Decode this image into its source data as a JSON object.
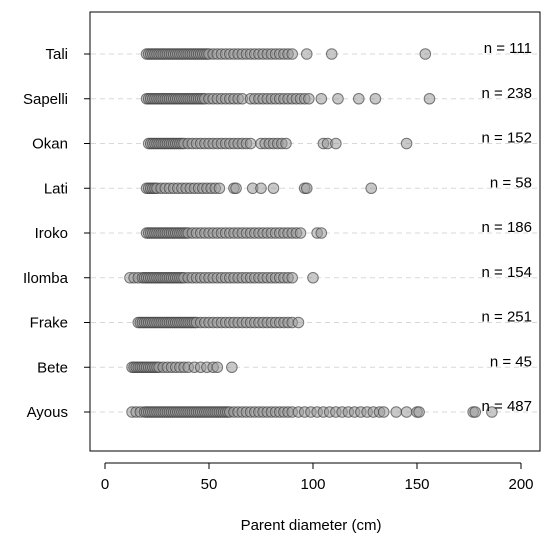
{
  "chart_data": {
    "type": "scatter",
    "xlabel": "Parent diameter (cm)",
    "ylabel": "",
    "title": "",
    "xlim": [
      -7,
      205
    ],
    "x_ticks": [
      0,
      50,
      100,
      150,
      200
    ],
    "grid": "horizontal dashed",
    "colors": {
      "point_fill": "#9a9a9a",
      "point_stroke": "#3a3a3a",
      "grid": "#d8d8d8"
    },
    "categories": [
      "Ayous",
      "Bete",
      "Frake",
      "Ilomba",
      "Iroko",
      "Lati",
      "Okan",
      "Sapelli",
      "Tali"
    ],
    "series": [
      {
        "values": [
          13,
          15,
          17,
          19,
          20,
          21,
          22,
          23,
          24,
          25,
          26,
          27,
          28,
          29,
          30,
          31,
          32,
          33,
          34,
          35,
          36,
          37,
          38,
          39,
          40,
          41,
          42,
          43,
          44,
          45,
          46,
          47,
          48,
          49,
          50,
          51,
          52,
          53,
          54,
          55,
          56,
          57,
          58,
          59,
          60,
          62,
          64,
          66,
          68,
          70,
          72,
          74,
          76,
          78,
          80,
          82,
          84,
          86,
          88,
          90,
          93,
          96,
          99,
          102,
          105,
          108,
          111,
          114,
          117,
          120,
          123,
          126,
          129,
          132,
          134,
          140,
          145,
          150,
          151,
          177,
          178,
          186
        ],
        "annotation": "n = 487"
      },
      {
        "values": [
          13,
          14,
          15,
          16,
          17,
          18,
          19,
          20,
          21,
          22,
          23,
          24,
          25,
          26,
          28,
          30,
          32,
          34,
          36,
          38,
          40,
          43,
          46,
          49,
          52,
          54,
          61
        ],
        "annotation": "n = 45"
      },
      {
        "values": [
          16,
          17,
          18,
          19,
          20,
          21,
          22,
          23,
          24,
          25,
          26,
          27,
          28,
          29,
          30,
          31,
          32,
          33,
          34,
          35,
          36,
          37,
          38,
          39,
          40,
          41,
          42,
          43,
          44,
          46,
          48,
          50,
          52,
          54,
          56,
          58,
          60,
          62,
          64,
          66,
          68,
          70,
          72,
          74,
          76,
          78,
          80,
          82,
          84,
          86,
          88,
          90,
          93
        ],
        "annotation": "n = 251"
      },
      {
        "values": [
          12,
          14,
          16,
          18,
          19,
          20,
          21,
          22,
          23,
          24,
          25,
          26,
          27,
          28,
          29,
          30,
          31,
          32,
          33,
          34,
          35,
          36,
          37,
          38,
          40,
          42,
          44,
          46,
          48,
          50,
          52,
          54,
          56,
          58,
          60,
          62,
          64,
          66,
          68,
          70,
          72,
          74,
          76,
          78,
          80,
          82,
          84,
          86,
          88,
          90,
          100
        ],
        "annotation": "n = 154"
      },
      {
        "values": [
          20,
          21,
          22,
          23,
          24,
          25,
          26,
          27,
          28,
          29,
          30,
          31,
          32,
          33,
          34,
          35,
          36,
          37,
          38,
          39,
          40,
          42,
          44,
          46,
          48,
          50,
          52,
          54,
          56,
          58,
          60,
          62,
          64,
          66,
          68,
          70,
          72,
          74,
          76,
          78,
          80,
          82,
          84,
          86,
          88,
          90,
          92,
          94,
          102,
          104
        ],
        "annotation": "n = 186"
      },
      {
        "values": [
          20,
          21,
          22,
          23,
          24,
          25,
          27,
          29,
          31,
          33,
          35,
          37,
          39,
          41,
          43,
          45,
          47,
          49,
          51,
          53,
          55,
          62,
          63,
          71,
          75,
          81,
          96,
          97,
          128
        ],
        "annotation": "n = 58"
      },
      {
        "values": [
          21,
          22,
          23,
          24,
          25,
          26,
          27,
          28,
          29,
          30,
          31,
          32,
          33,
          34,
          35,
          36,
          37,
          38,
          40,
          42,
          44,
          46,
          48,
          50,
          52,
          54,
          56,
          58,
          60,
          62,
          64,
          66,
          68,
          70,
          75,
          77,
          79,
          81,
          83,
          85,
          87,
          105,
          107,
          111,
          145
        ],
        "annotation": "n = 152"
      },
      {
        "values": [
          20,
          21,
          22,
          23,
          24,
          25,
          26,
          27,
          28,
          29,
          30,
          31,
          32,
          33,
          34,
          35,
          36,
          37,
          38,
          39,
          40,
          41,
          42,
          43,
          44,
          45,
          46,
          47,
          48,
          50,
          52,
          54,
          56,
          58,
          60,
          62,
          64,
          66,
          70,
          72,
          74,
          76,
          78,
          80,
          82,
          84,
          86,
          88,
          90,
          92,
          94,
          96,
          98,
          104,
          112,
          122,
          130,
          156
        ],
        "annotation": "n = 238"
      },
      {
        "values": [
          20,
          21,
          22,
          23,
          24,
          25,
          26,
          27,
          28,
          29,
          30,
          31,
          32,
          33,
          34,
          35,
          36,
          37,
          38,
          39,
          40,
          41,
          42,
          43,
          44,
          45,
          46,
          47,
          48,
          49,
          50,
          52,
          54,
          56,
          58,
          60,
          62,
          64,
          66,
          68,
          70,
          72,
          74,
          76,
          78,
          80,
          82,
          84,
          86,
          88,
          90,
          97,
          109,
          154
        ],
        "annotation": "n = 111"
      }
    ]
  }
}
